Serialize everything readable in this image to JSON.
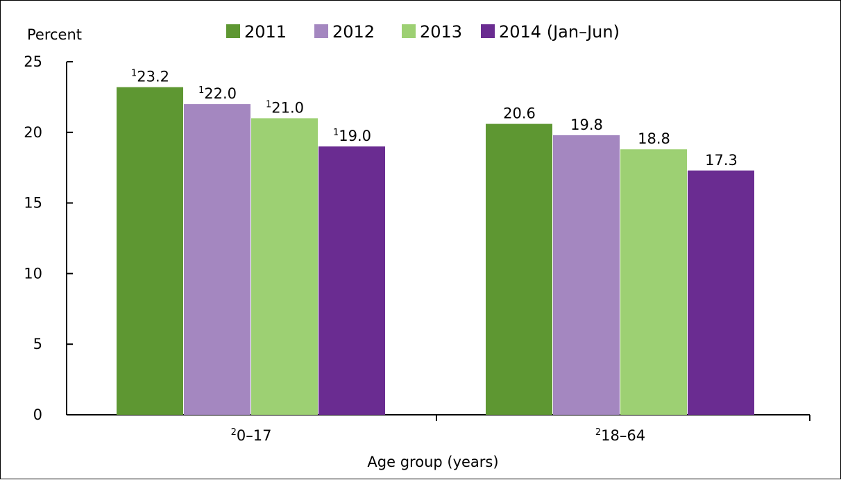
{
  "chart_data": {
    "type": "bar",
    "ylabel": "Percent",
    "xlabel": "Age group (years)",
    "ylim": [
      0,
      25
    ],
    "yticks": [
      0,
      5,
      10,
      15,
      20,
      25
    ],
    "categories": [
      {
        "sup": "2",
        "text": "0–17"
      },
      {
        "sup": "2",
        "text": "18–64"
      }
    ],
    "series": [
      {
        "name": "2011",
        "color": "#5e9732",
        "values": [
          23.2,
          20.6
        ],
        "label_sup": [
          "1",
          ""
        ]
      },
      {
        "name": "2012",
        "color": "#a487c0",
        "values": [
          22.0,
          19.8
        ],
        "label_sup": [
          "1",
          ""
        ]
      },
      {
        "name": "2013",
        "color": "#9dd073",
        "values": [
          21.0,
          18.8
        ],
        "label_sup": [
          "1",
          ""
        ]
      },
      {
        "name": "2014 (Jan–Jun)",
        "color": "#6a2c91",
        "values": [
          19.0,
          17.3
        ],
        "label_sup": [
          "1",
          ""
        ]
      }
    ],
    "legend_position": "top",
    "grid": false
  }
}
